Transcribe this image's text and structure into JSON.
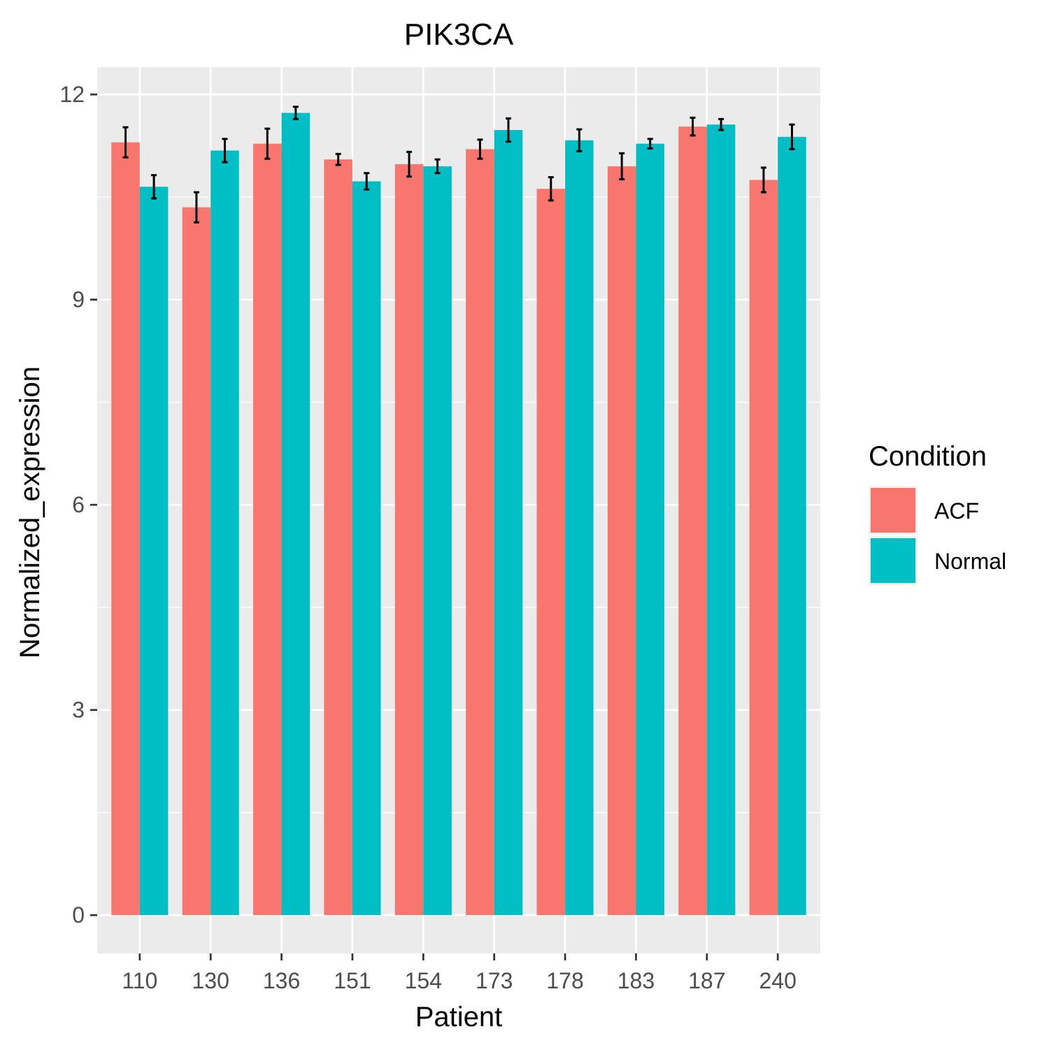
{
  "chart_data": {
    "type": "bar",
    "title": "PIK3CA",
    "xlabel": "Patient",
    "ylabel": "Normalized_expression",
    "categories": [
      "110",
      "130",
      "136",
      "151",
      "154",
      "173",
      "178",
      "183",
      "187",
      "240"
    ],
    "series": [
      {
        "name": "ACF",
        "color": "#F8766D",
        "values": [
          11.3,
          10.35,
          11.28,
          11.05,
          10.98,
          11.2,
          10.62,
          10.95,
          11.53,
          10.75
        ],
        "error": [
          0.22,
          0.22,
          0.22,
          0.08,
          0.18,
          0.14,
          0.17,
          0.19,
          0.13,
          0.18
        ]
      },
      {
        "name": "Normal",
        "color": "#00BFC4",
        "values": [
          10.65,
          11.18,
          11.73,
          10.73,
          10.95,
          11.48,
          11.33,
          11.28,
          11.56,
          11.38
        ],
        "error": [
          0.17,
          0.17,
          0.09,
          0.12,
          0.1,
          0.17,
          0.16,
          0.07,
          0.08,
          0.18
        ]
      }
    ],
    "y_ticks": [
      0,
      3,
      6,
      9,
      12
    ],
    "ylim": [
      -0.56,
      12.4
    ],
    "grid": true,
    "legend": {
      "title": "Condition",
      "position": "right",
      "entries": [
        "ACF",
        "Normal"
      ]
    }
  }
}
